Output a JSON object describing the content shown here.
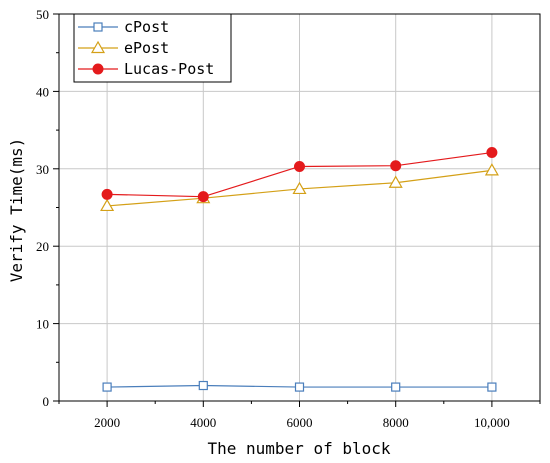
{
  "chart_data": {
    "type": "line",
    "x": [
      2000,
      4000,
      6000,
      8000,
      10000
    ],
    "x_tick_labels": [
      "2000",
      "4000",
      "6000",
      "8000",
      "10,000"
    ],
    "xlabel": "The number of block",
    "ylabel": "Verify Time(ms)",
    "ylim": [
      0,
      50
    ],
    "y_ticks": [
      0,
      10,
      20,
      30,
      40,
      50
    ],
    "grid": true,
    "legend_position": "top-left",
    "series": [
      {
        "name": "cPost",
        "values": [
          1.8,
          2.0,
          1.8,
          1.8,
          1.8
        ],
        "color": "#4a7ebb",
        "marker": "square-open"
      },
      {
        "name": "ePost",
        "values": [
          25.2,
          26.2,
          27.4,
          28.2,
          29.8
        ],
        "color": "#d4a017",
        "marker": "triangle-open"
      },
      {
        "name": "Lucas-Post",
        "values": [
          26.7,
          26.4,
          30.3,
          30.4,
          32.1
        ],
        "color": "#e41a1c",
        "marker": "circle-filled"
      }
    ]
  }
}
